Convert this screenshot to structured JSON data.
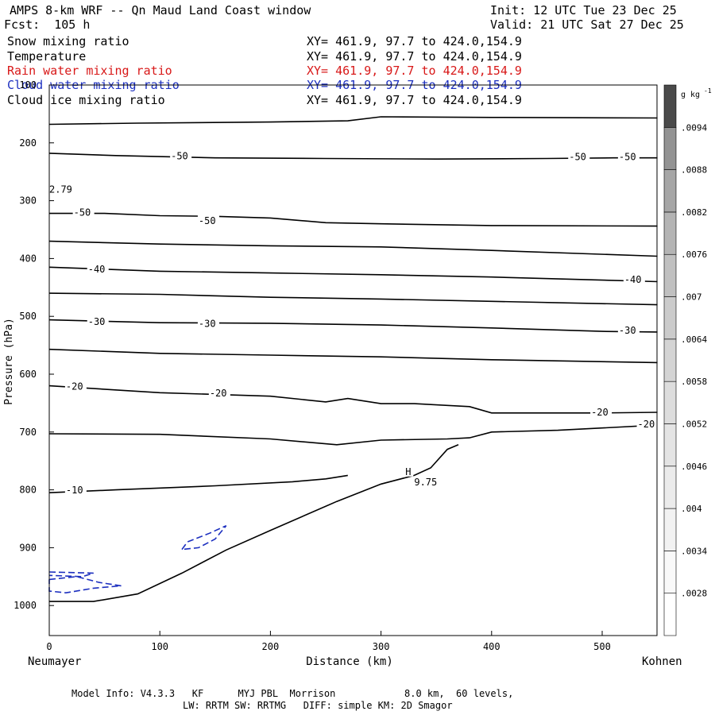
{
  "header": {
    "title": "AMPS 8-km WRF -- Qn Maud Land Coast window",
    "init": "Init: 12 UTC Tue 23 Dec 25",
    "forecast": "Fcst:  105 h",
    "valid": "Valid: 21 UTC Sat 27 Dec 25"
  },
  "legend": [
    {
      "name": "Snow mixing ratio",
      "xy": "XY= 461.9, 97.7 to 424.0,154.9",
      "color": "#000000"
    },
    {
      "name": "Temperature",
      "xy": "XY= 461.9, 97.7 to 424.0,154.9",
      "color": "#000000"
    },
    {
      "name": "Rain water mixing ratio",
      "xy": "XY= 461.9, 97.7 to 424.0,154.9",
      "color": "#d81818"
    },
    {
      "name": "Cloud water mixing ratio",
      "xy": "XY= 461.9, 97.7 to 424.0,154.9",
      "color": "#1c2fbf"
    },
    {
      "name": "Cloud ice mixing ratio",
      "xy": "XY= 461.9, 97.7 to 424.0,154.9",
      "color": "#000000"
    }
  ],
  "footer": {
    "line1": "Model Info: V4.3.3   KF      MYJ PBL  Morrison            8.0 km,  60 levels,",
    "line2": "LW: RRTM SW: RRTMG   DIFF: simple KM: 2D Smagor"
  },
  "chart_data": {
    "type": "contour",
    "title": "AMPS 8-km WRF -- Qn Maud Land Coast window",
    "xlabel": "Distance (km)",
    "ylabel": "Pressure (hPa)",
    "xlim": [
      0,
      550
    ],
    "ylim": [
      1050,
      100
    ],
    "x_ticks": [
      0,
      100,
      200,
      300,
      400,
      500
    ],
    "y_ticks": [
      100,
      200,
      300,
      400,
      500,
      600,
      700,
      800,
      900,
      1000
    ],
    "x_start_label": "Neumayer",
    "x_end_label": "Kohnen",
    "colorbar": {
      "units": "g kg",
      "units_exp": "-1",
      "levels": [
        ".0028",
        ".0034",
        ".004",
        ".0046",
        ".0052",
        ".0058",
        ".0064",
        ".007",
        ".0076",
        ".0082",
        ".0088",
        ".0094"
      ],
      "colors": [
        "#ffffff",
        "#f9f9f9",
        "#f2f2f2",
        "#ebebeb",
        "#e4e4e4",
        "#dddddd",
        "#d4d4d4",
        "#cbcbcb",
        "#c0c0c0",
        "#b4b4b4",
        "#a6a6a6",
        "#939393",
        "#4a4a4a"
      ]
    },
    "temperature_contours": [
      {
        "level": -50,
        "points": [
          [
            0,
            218
          ],
          [
            60,
            222
          ],
          [
            150,
            226
          ],
          [
            250,
            227
          ],
          [
            350,
            228
          ],
          [
            450,
            227
          ],
          [
            510,
            226
          ],
          [
            550,
            226
          ]
        ]
      },
      {
        "level": -50,
        "points": [
          [
            0,
            322
          ],
          [
            50,
            322
          ],
          [
            100,
            326
          ],
          [
            150,
            327
          ],
          [
            200,
            330
          ],
          [
            250,
            338
          ],
          [
            300,
            340
          ],
          [
            400,
            343
          ],
          [
            550,
            344
          ]
        ]
      },
      {
        "level": -40,
        "points": [
          [
            0,
            415
          ],
          [
            100,
            422
          ],
          [
            200,
            425
          ],
          [
            300,
            428
          ],
          [
            400,
            432
          ],
          [
            550,
            440
          ]
        ]
      },
      {
        "level": -30,
        "points": [
          [
            0,
            506
          ],
          [
            100,
            511
          ],
          [
            200,
            512
          ],
          [
            300,
            515
          ],
          [
            400,
            520
          ],
          [
            500,
            526
          ],
          [
            550,
            527
          ]
        ]
      },
      {
        "level": -20,
        "points": [
          [
            0,
            620
          ],
          [
            100,
            632
          ],
          [
            200,
            638
          ],
          [
            250,
            648
          ],
          [
            270,
            642
          ],
          [
            300,
            651
          ],
          [
            330,
            651
          ],
          [
            380,
            656
          ],
          [
            400,
            667
          ],
          [
            500,
            667
          ],
          [
            550,
            666
          ]
        ]
      },
      {
        "level": -10,
        "points": [
          [
            0,
            805
          ],
          [
            60,
            800
          ],
          [
            150,
            793
          ],
          [
            220,
            786
          ],
          [
            250,
            781
          ],
          [
            270,
            775
          ]
        ]
      },
      {
        "level": null,
        "points": [
          [
            0,
            168
          ],
          [
            80,
            166
          ],
          [
            200,
            164
          ],
          [
            270,
            162
          ],
          [
            300,
            155
          ],
          [
            400,
            156
          ],
          [
            550,
            157
          ]
        ]
      },
      {
        "level": null,
        "points": [
          [
            0,
            370
          ],
          [
            100,
            375
          ],
          [
            200,
            378
          ],
          [
            300,
            380
          ],
          [
            400,
            386
          ],
          [
            550,
            396
          ]
        ]
      },
      {
        "level": null,
        "points": [
          [
            0,
            460
          ],
          [
            100,
            462
          ],
          [
            200,
            467
          ],
          [
            300,
            470
          ],
          [
            400,
            474
          ],
          [
            550,
            480
          ]
        ]
      },
      {
        "level": null,
        "points": [
          [
            0,
            557
          ],
          [
            100,
            564
          ],
          [
            200,
            567
          ],
          [
            300,
            570
          ],
          [
            400,
            575
          ],
          [
            550,
            580
          ]
        ]
      },
      {
        "level": null,
        "points": [
          [
            0,
            703
          ],
          [
            100,
            704
          ],
          [
            200,
            712
          ],
          [
            260,
            722
          ],
          [
            300,
            714
          ],
          [
            360,
            712
          ],
          [
            380,
            710
          ],
          [
            400,
            700
          ],
          [
            460,
            697
          ],
          [
            550,
            688
          ]
        ]
      }
    ],
    "contour_labels": [
      {
        "text": "-50",
        "x": 110,
        "pressure": 224
      },
      {
        "text": "-50",
        "x": 470,
        "pressure": 226
      },
      {
        "text": "-50",
        "x": 515,
        "pressure": 226
      },
      {
        "text": "-50",
        "x": 22,
        "pressure": 322
      },
      {
        "text": "-50",
        "x": 135,
        "pressure": 336
      },
      {
        "text": "-40",
        "x": 35,
        "pressure": 420
      },
      {
        "text": "-40",
        "x": 520,
        "pressure": 438
      },
      {
        "text": "-30",
        "x": 35,
        "pressure": 511
      },
      {
        "text": "-30",
        "x": 135,
        "pressure": 514
      },
      {
        "text": "-30",
        "x": 515,
        "pressure": 526
      },
      {
        "text": "-20",
        "x": 15,
        "pressure": 623
      },
      {
        "text": "-20",
        "x": 145,
        "pressure": 634
      },
      {
        "text": "-20",
        "x": 490,
        "pressure": 667
      },
      {
        "text": "-20",
        "x": 532,
        "pressure": 688
      },
      {
        "text": "-10",
        "x": 15,
        "pressure": 802
      },
      {
        "text": "2.79",
        "x": 0,
        "pressure": 282
      },
      {
        "text": "H",
        "x": 322,
        "pressure": 770
      },
      {
        "text": "9.75",
        "x": 330,
        "pressure": 788
      }
    ],
    "terrain_cutoff": [
      [
        0,
        993
      ],
      [
        40,
        993
      ],
      [
        80,
        980
      ],
      [
        120,
        944
      ],
      [
        160,
        904
      ],
      [
        200,
        870
      ],
      [
        260,
        820
      ],
      [
        300,
        790
      ],
      [
        330,
        775
      ],
      [
        345,
        762
      ],
      [
        360,
        730
      ],
      [
        370,
        722
      ]
    ],
    "rain_water_contours": [],
    "cloud_water_contours": [
      {
        "points": [
          [
            120,
            903
          ],
          [
            125,
            890
          ],
          [
            145,
            875
          ],
          [
            160,
            862
          ],
          [
            150,
            885
          ],
          [
            135,
            900
          ],
          [
            120,
            903
          ]
        ]
      },
      {
        "points": [
          [
            0,
            955
          ],
          [
            25,
            950
          ],
          [
            45,
            960
          ],
          [
            65,
            966
          ],
          [
            40,
            970
          ],
          [
            15,
            978
          ],
          [
            0,
            975
          ],
          [
            0,
            955
          ]
        ]
      },
      {
        "points": [
          [
            0,
            942
          ],
          [
            20,
            943
          ],
          [
            40,
            944
          ],
          [
            30,
            950
          ],
          [
            0,
            948
          ]
        ]
      }
    ]
  }
}
